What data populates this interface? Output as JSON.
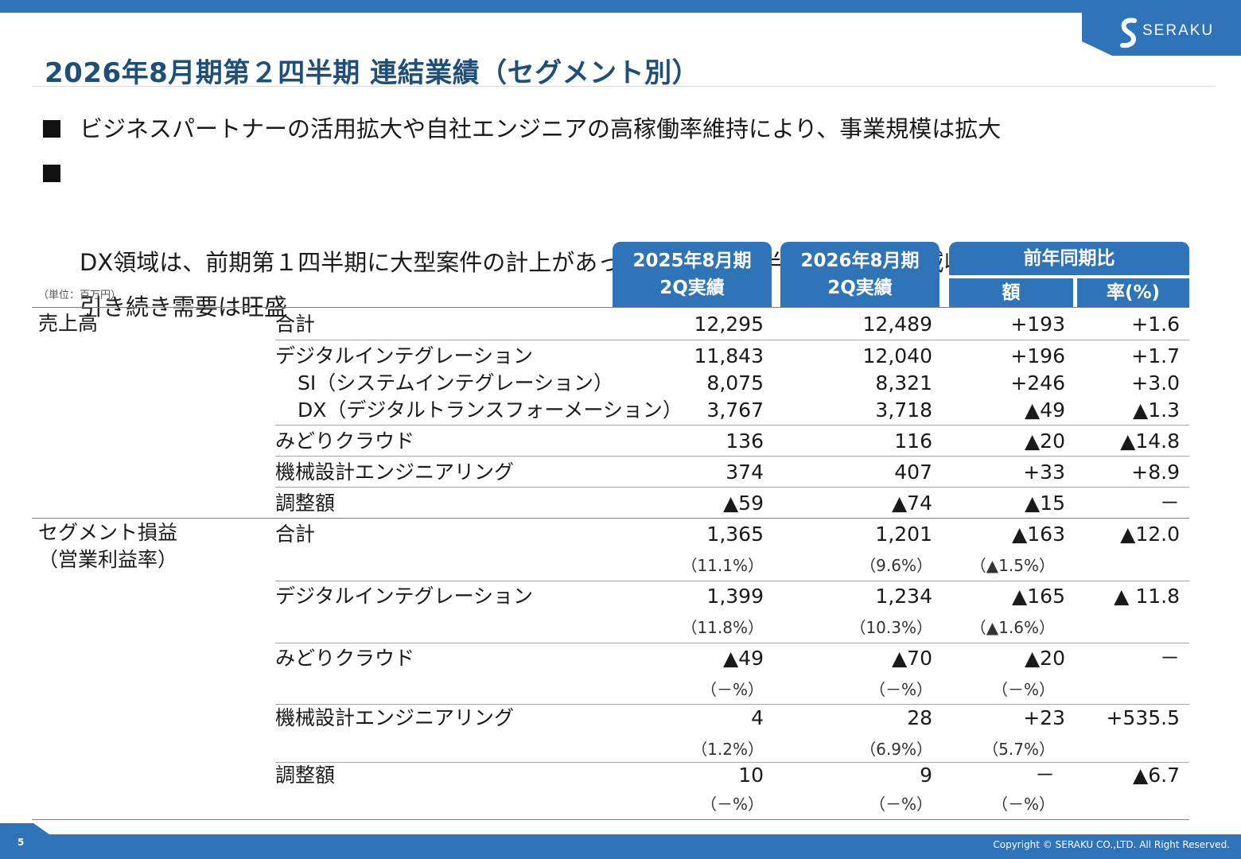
{
  "header": {
    "logo_text": "SERAKU",
    "title": "2026年8月期第２四半期 連結業績（セグメント別）"
  },
  "bullets": [
    "ビジネスパートナーの活用拡大や自社エンジニアの高稼働率維持により、事業規模は拡大",
    "DX領域は、前期第１四半期に大型案件の計上があったため、当四半期の売上高は減収も、\n引き続き需要は旺盛"
  ],
  "table": {
    "unit": "（単位：百万円）",
    "col_prev": "2025年8月期\n2Q実績",
    "col_curr": "2026年8月期\n2Q実績",
    "col_compare": "前年同期比",
    "col_amount": "額",
    "col_rate": "率(%)",
    "sales": {
      "category": "売上高",
      "rows": [
        {
          "label": "合計",
          "prev": "12,295",
          "curr": "12,489",
          "amount": "+193",
          "rate": "+1.6"
        },
        {
          "label": "デジタルインテグレーション",
          "prev": "11,843",
          "curr": "12,040",
          "amount": "+196",
          "rate": "+1.7"
        },
        {
          "label": "SI（システムインテグレーション）",
          "prev": "8,075",
          "curr": "8,321",
          "amount": "+246",
          "rate": "+3.0"
        },
        {
          "label": "DX（デジタルトランスフォーメーション）",
          "prev": "3,767",
          "curr": "3,718",
          "amount": "▲49",
          "rate": "▲1.3"
        },
        {
          "label": "みどりクラウド",
          "prev": "136",
          "curr": "116",
          "amount": "▲20",
          "rate": "▲14.8"
        },
        {
          "label": "機械設計エンジニアリング",
          "prev": "374",
          "curr": "407",
          "amount": "+33",
          "rate": "+8.9"
        },
        {
          "label": "調整額",
          "prev": "▲59",
          "curr": "▲74",
          "amount": "▲15",
          "rate": "－"
        }
      ]
    },
    "segment": {
      "category_line1": "セグメント損益",
      "category_line2": "（営業利益率）",
      "rows": [
        {
          "label": "合計",
          "prev": "1,365",
          "curr": "1,201",
          "amount": "▲163",
          "rate": "▲12.0",
          "prev_pct": "（11.1%）",
          "curr_pct": "（9.6%）",
          "amount_pct": "（▲1.5%）"
        },
        {
          "label": "デジタルインテグレーション",
          "prev": "1,399",
          "curr": "1,234",
          "amount": "▲165",
          "rate": "▲ 11.8",
          "prev_pct": "（11.8%）",
          "curr_pct": "（10.3%）",
          "amount_pct": "（▲1.6%）"
        },
        {
          "label": "みどりクラウド",
          "prev": "▲49",
          "curr": "▲70",
          "amount": "▲20",
          "rate": "－",
          "prev_pct": "（－%）",
          "curr_pct": "（－%）",
          "amount_pct": "（－%）"
        },
        {
          "label": "機械設計エンジニアリング",
          "prev": "4",
          "curr": "28",
          "amount": "+23",
          "rate": "+535.5",
          "prev_pct": "（1.2%）",
          "curr_pct": "（6.9%）",
          "amount_pct": "（5.7%）"
        },
        {
          "label": "調整額",
          "prev": "10",
          "curr": "9",
          "amount": "－",
          "rate": "▲6.7",
          "prev_pct": "（－%）",
          "curr_pct": "（－%）",
          "amount_pct": "（－%）"
        }
      ]
    }
  },
  "footer": {
    "page_number": "5",
    "copyright": "Copyright © SERAKU CO.,LTD. All Right Reserved."
  }
}
